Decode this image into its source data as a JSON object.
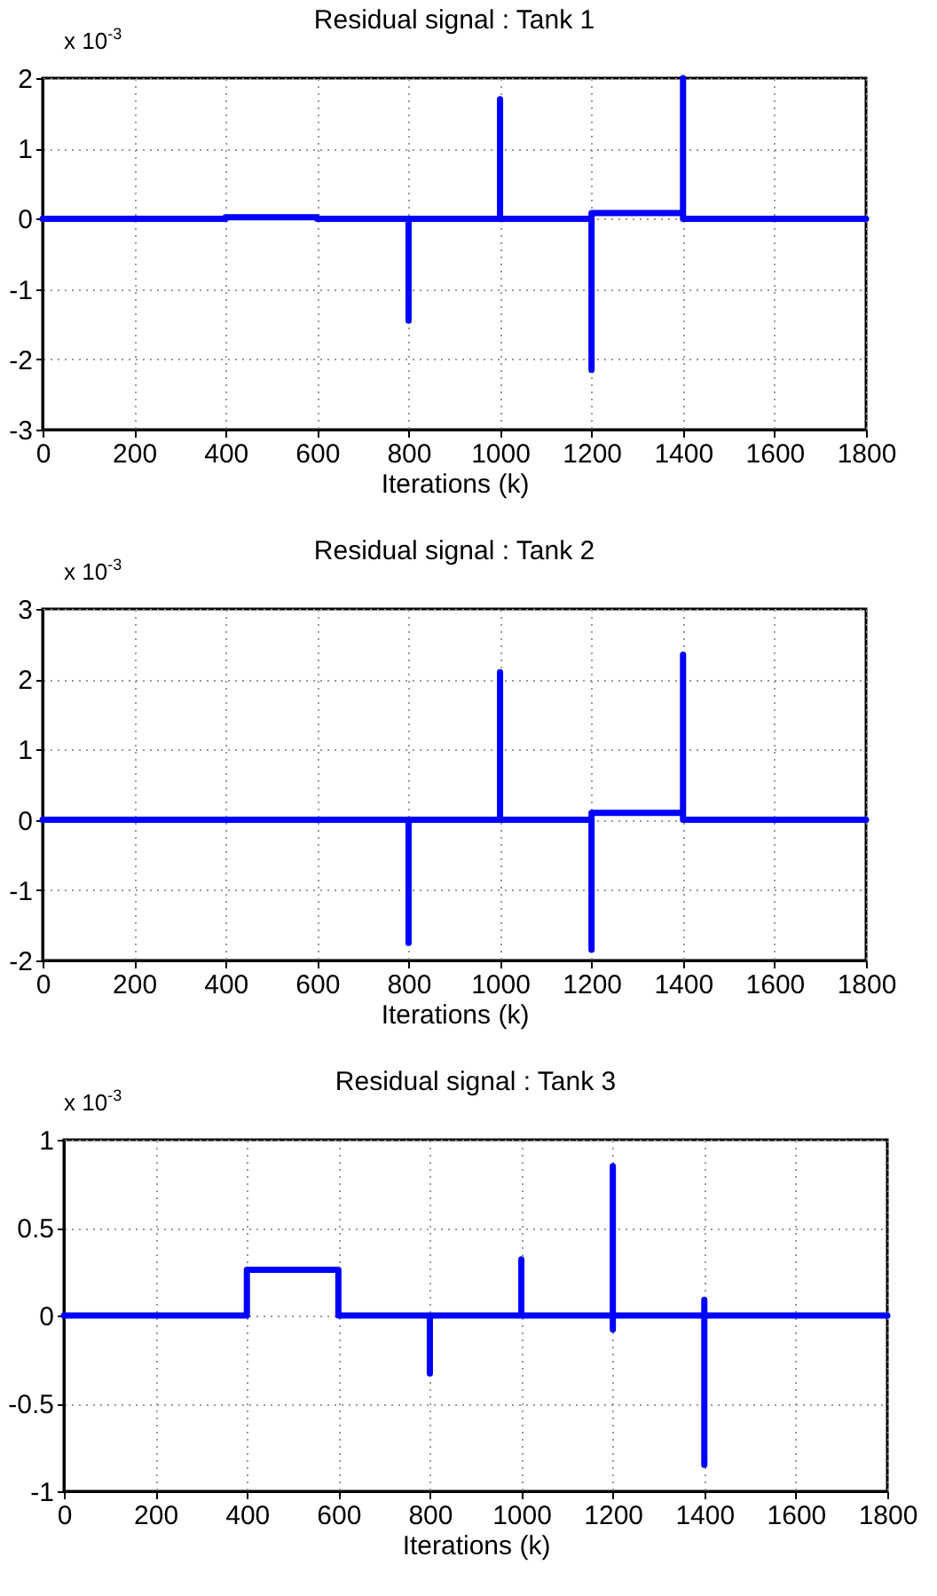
{
  "chart_data": [
    {
      "type": "line",
      "title": "Residual signal  : Tank 1",
      "xlabel": "Iterations (k)",
      "annotations": [
        "x 10$^{-3}$"
      ],
      "x": [
        0,
        400,
        400,
        600,
        600,
        800,
        800,
        800,
        1000,
        1000,
        1000,
        1200,
        1200,
        1200,
        1400,
        1400,
        1400,
        1800
      ],
      "series": [
        {
          "color": "#0000ff",
          "values": [
            0,
            0,
            0.02,
            0.02,
            0,
            0,
            -1.45,
            0,
            0,
            1.7,
            0,
            0,
            -2.15,
            0.08,
            0.08,
            2,
            0,
            0
          ]
        }
      ],
      "xlim": [
        0,
        1800
      ],
      "xticks": [
        0,
        200,
        400,
        600,
        800,
        1000,
        1200,
        1400,
        1600,
        1800
      ],
      "ylim": [
        -3,
        2
      ],
      "yticks": [
        -3,
        -2,
        -1,
        0,
        1,
        2
      ],
      "grid": true,
      "line_style": "solid"
    },
    {
      "type": "line",
      "title": "Residual signal  : Tank 2",
      "xlabel": "Iterations (k)",
      "annotations": [
        "x 10$^{-3}$"
      ],
      "x": [
        0,
        800,
        800,
        800,
        1000,
        1000,
        1000,
        1200,
        1200,
        1200,
        1400,
        1400,
        1400,
        1800
      ],
      "series": [
        {
          "color": "#0000ff",
          "values": [
            0,
            0,
            -1.75,
            0,
            0,
            2.1,
            0,
            0,
            -1.85,
            0.1,
            0.1,
            2.35,
            0,
            0
          ]
        }
      ],
      "xlim": [
        0,
        1800
      ],
      "xticks": [
        0,
        200,
        400,
        600,
        800,
        1000,
        1200,
        1400,
        1600,
        1800
      ],
      "ylim": [
        -2,
        3
      ],
      "yticks": [
        -2,
        -1,
        0,
        1,
        2,
        3
      ],
      "grid": true,
      "line_style": "solid"
    },
    {
      "type": "line",
      "title": "Residual signal : Tank 3",
      "xlabel": "Iterations (k)",
      "annotations": [
        "x 10$^{-3}$"
      ],
      "x": [
        0,
        400,
        400,
        600,
        600,
        800,
        800,
        800,
        1000,
        1000,
        1000,
        1200,
        1200,
        1200,
        1200,
        1400,
        1400,
        1400,
        1400,
        1800
      ],
      "series": [
        {
          "color": "#0000ff",
          "values": [
            0,
            0,
            0.26,
            0.26,
            0,
            0,
            -0.33,
            0,
            0,
            0.32,
            0,
            0,
            0.85,
            -0.08,
            0,
            0,
            0.09,
            -0.85,
            0,
            0
          ]
        }
      ],
      "xlim": [
        0,
        1800
      ],
      "xticks": [
        0,
        200,
        400,
        600,
        800,
        1000,
        1200,
        1400,
        1600,
        1800
      ],
      "ylim": [
        -1,
        1
      ],
      "yticks": [
        -1,
        -0.5,
        0,
        0.5,
        1
      ],
      "grid": true,
      "line_style": "solid"
    }
  ]
}
